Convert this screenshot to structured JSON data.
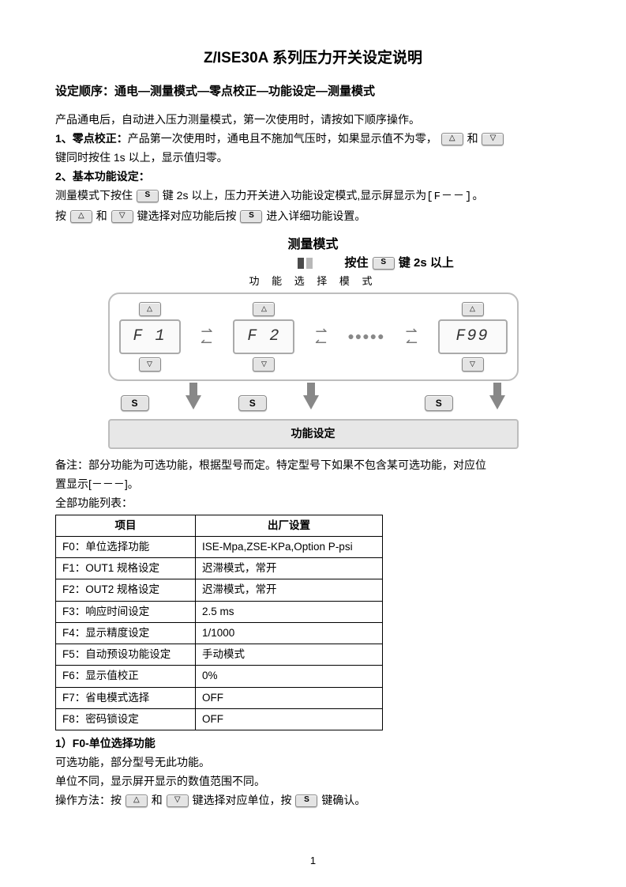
{
  "title": "Z/ISE30A 系列压力开关设定说明",
  "sequence": "设定顺序：通电—测量模式—零点校正—功能设定—测量模式",
  "intro1": "产品通电后，自动进入压力测量模式，第一次使用时，请按如下顺序操作。",
  "zero_label": "1、零点校正：",
  "zero_a": "产品第一次使用时，通电且不施加气压时，如果显示值不为零，",
  "zero_b": "和",
  "zero_c": "键同时按住 1s 以上，显示值归零。",
  "basic_label": "2、基本功能设定：",
  "basic_a1": "测量模式下按住",
  "basic_a2": "键 2s 以上，压力开关进入功能设定模式,显示屏显示为",
  "basic_a3": "[F－－]",
  "basic_a4": "。",
  "basic_b1": "按",
  "basic_b2": "和",
  "basic_b3": "键选择对应功能后按",
  "basic_b4": "进入详细功能设置。",
  "diag": {
    "title": "测量模式",
    "hold_text_a": "按住",
    "hold_text_b": "键 2s 以上",
    "mode_select": "功 能 选 择 模 式",
    "f1": "F 1",
    "f2": "F 2",
    "f99": "F99",
    "dots": "●●●●●",
    "s": "S",
    "func_set": "功能设定",
    "up": "△",
    "down": "▽",
    "swap_r": "⇄",
    "swap_l": "⇄"
  },
  "note1": "备注：部分功能为可选功能，根据型号而定。特定型号下如果不包含某可选功能，对应位",
  "note2": "置显示[－－－]。",
  "allfunc_label": "全部功能列表：",
  "table": {
    "h1": "项目",
    "h2": "出厂设置",
    "rows": [
      [
        "F0：单位选择功能",
        "ISE-Mpa,ZSE-KPa,Option P-psi"
      ],
      [
        "F1：OUT1 规格设定",
        "迟滞模式，常开"
      ],
      [
        "F2：OUT2 规格设定",
        "迟滞模式，常开"
      ],
      [
        "F3：响应时间设定",
        "2.5 ms"
      ],
      [
        "F4：显示精度设定",
        "1/1000"
      ],
      [
        "F5：自动预设功能设定",
        "手动模式"
      ],
      [
        "F6：显示值校正",
        "0%"
      ],
      [
        "F7：省电模式选择",
        "OFF"
      ],
      [
        "F8：密码锁设定",
        "OFF"
      ]
    ]
  },
  "f0_title": "1）F0-单位选择功能",
  "f0_l1": "可选功能，部分型号无此功能。",
  "f0_l2": "单位不同，显示屏开显示的数值范围不同。",
  "f0_l3a": "操作方法：按",
  "f0_l3b": "和",
  "f0_l3c": "键选择对应单位，按",
  "f0_l3d": "键确认。",
  "page": "1",
  "keys": {
    "up": "△",
    "down": "▽",
    "s": "S"
  }
}
